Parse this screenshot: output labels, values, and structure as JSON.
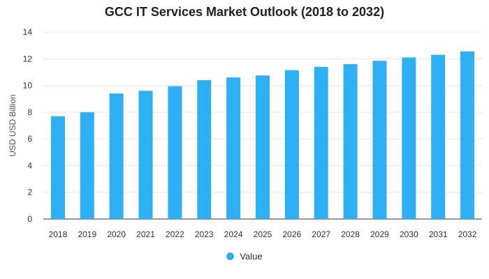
{
  "chart_data": {
    "type": "bar",
    "title": "GCC IT Services Market Outlook (2018 to 2032)",
    "xlabel": "",
    "ylabel": "USD USD Billion",
    "ylim": [
      0,
      14
    ],
    "yticks": [
      0,
      2,
      4,
      6,
      8,
      10,
      12,
      14
    ],
    "grid": true,
    "legend_position": "bottom",
    "categories": [
      "2018",
      "2019",
      "2020",
      "2021",
      "2022",
      "2023",
      "2024",
      "2025",
      "2026",
      "2027",
      "2028",
      "2029",
      "2030",
      "2031",
      "2032"
    ],
    "series": [
      {
        "name": "Value",
        "values": [
          7.7,
          8.0,
          9.4,
          9.6,
          9.95,
          10.4,
          10.6,
          10.75,
          11.15,
          11.4,
          11.6,
          11.85,
          12.1,
          12.3,
          12.55
        ]
      }
    ],
    "colors": {
      "bar": "#2fb0f4",
      "grid": "#e6e6e6",
      "axis": "#333333",
      "text": "#333333"
    }
  }
}
